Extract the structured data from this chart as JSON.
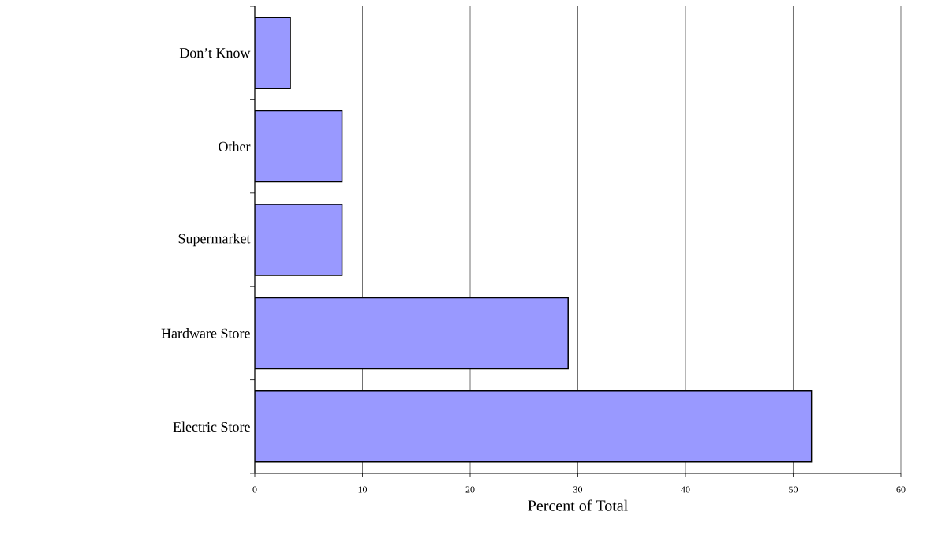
{
  "chart_data": {
    "type": "bar",
    "orientation": "horizontal",
    "xlabel": "Percent of Total",
    "categories": [
      "Don’t Know",
      "Other",
      "Supermarket",
      "Hardware Store",
      "Electric Store"
    ],
    "values": [
      3.3,
      8.1,
      8.1,
      29.1,
      51.7
    ],
    "color": "#9999ff",
    "xlim": [
      0,
      60
    ],
    "xticks": [
      0,
      10,
      20,
      30,
      40,
      50,
      60
    ],
    "grid": "x"
  }
}
